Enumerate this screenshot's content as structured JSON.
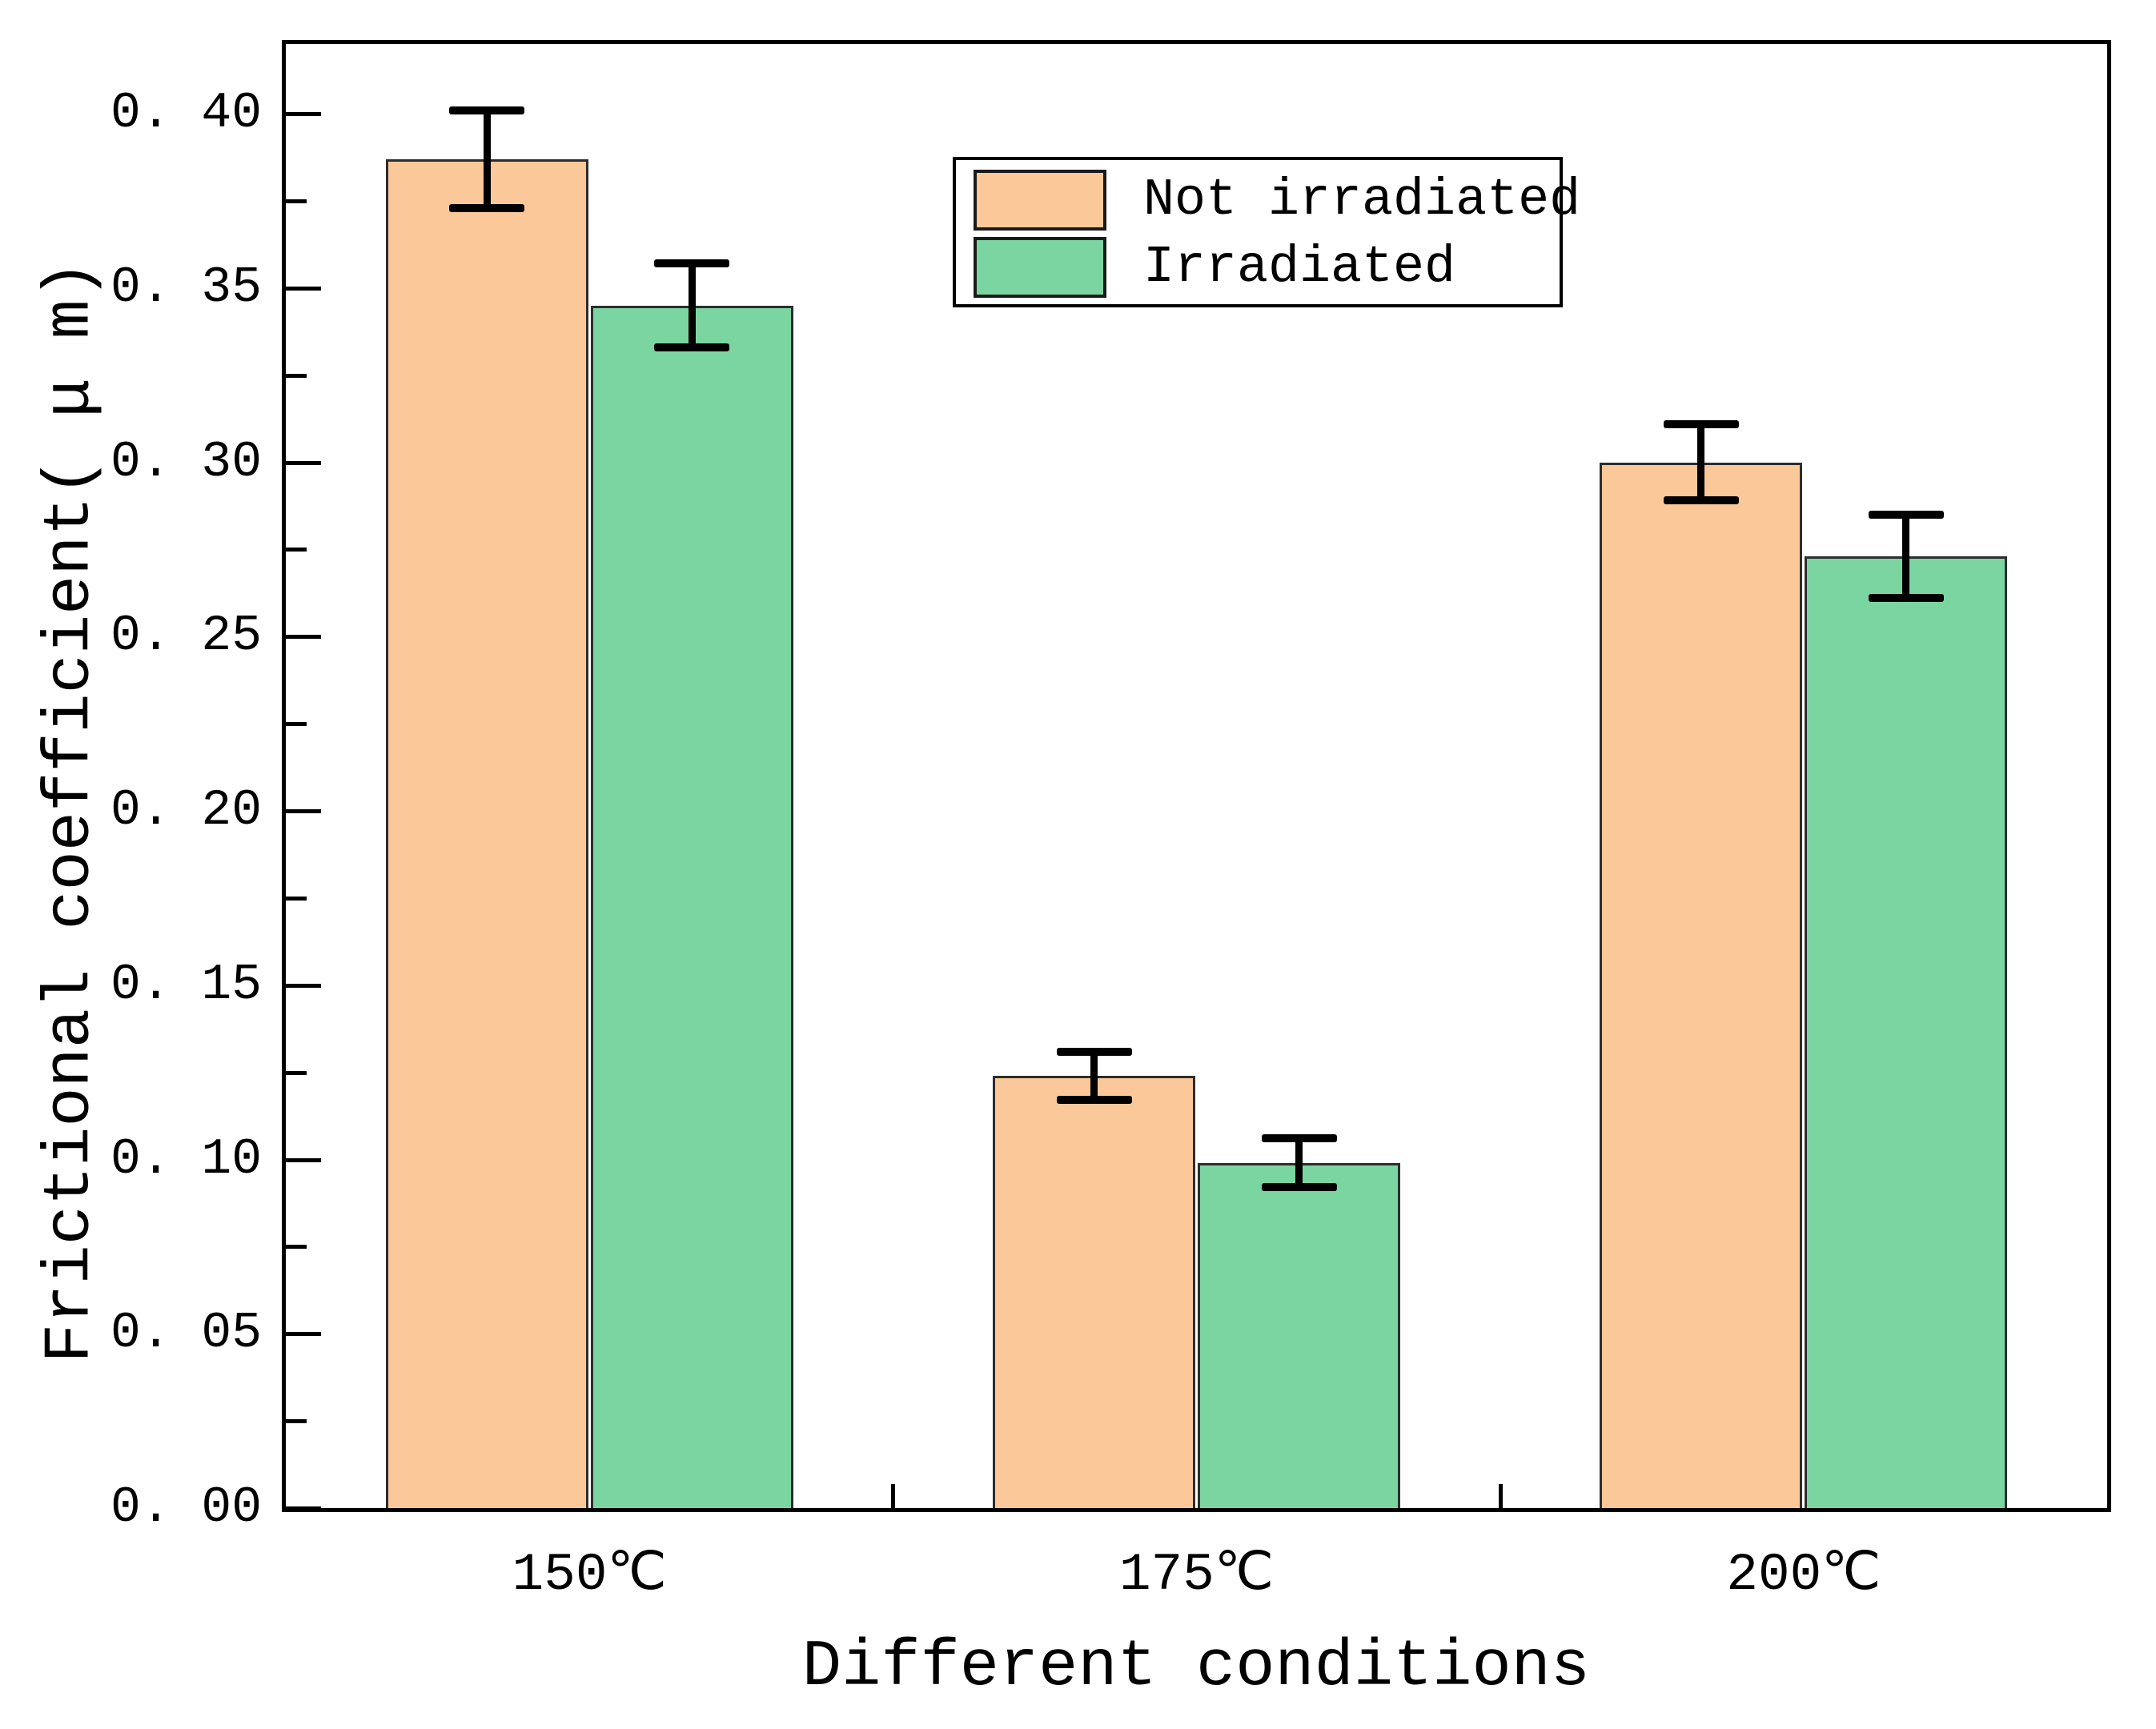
{
  "figure": {
    "background": "#ffffff"
  },
  "chart_data": {
    "type": "bar",
    "title": "",
    "xlabel": "Different conditions",
    "ylabel": "Frictional coefficient( μ m)",
    "categories": [
      "150℃",
      "175℃",
      "200℃"
    ],
    "series": [
      {
        "name": "Not irradiated",
        "color": "#FAC899",
        "edge_color": "#2d2d2d",
        "values": [
          0.387,
          0.124,
          0.3
        ],
        "errors": [
          0.014,
          0.007,
          0.011
        ]
      },
      {
        "name": "Irradiated",
        "color": "#7BD5A0",
        "edge_color": "#2d2d2d",
        "values": [
          0.345,
          0.099,
          0.273
        ],
        "errors": [
          0.012,
          0.007,
          0.012
        ]
      }
    ],
    "ylim": [
      0,
      0.42
    ],
    "yticks": [
      0.0,
      0.05,
      0.1,
      0.15,
      0.2,
      0.25,
      0.3,
      0.35,
      0.4
    ],
    "ytick_labels": [
      "0. 00",
      "0. 05",
      "0. 10",
      "0. 15",
      "0. 20",
      "0. 25",
      "0. 30",
      "0. 35",
      "0. 40"
    ],
    "minor_tick_step": 0.025,
    "grid": false,
    "legend_position": "upper-center",
    "error_bar_color": "#000000"
  },
  "legend": {
    "items": [
      {
        "label": "Not irradiated",
        "color": "#FAC899"
      },
      {
        "label": "Irradiated",
        "color": "#7BD5A0"
      }
    ]
  }
}
